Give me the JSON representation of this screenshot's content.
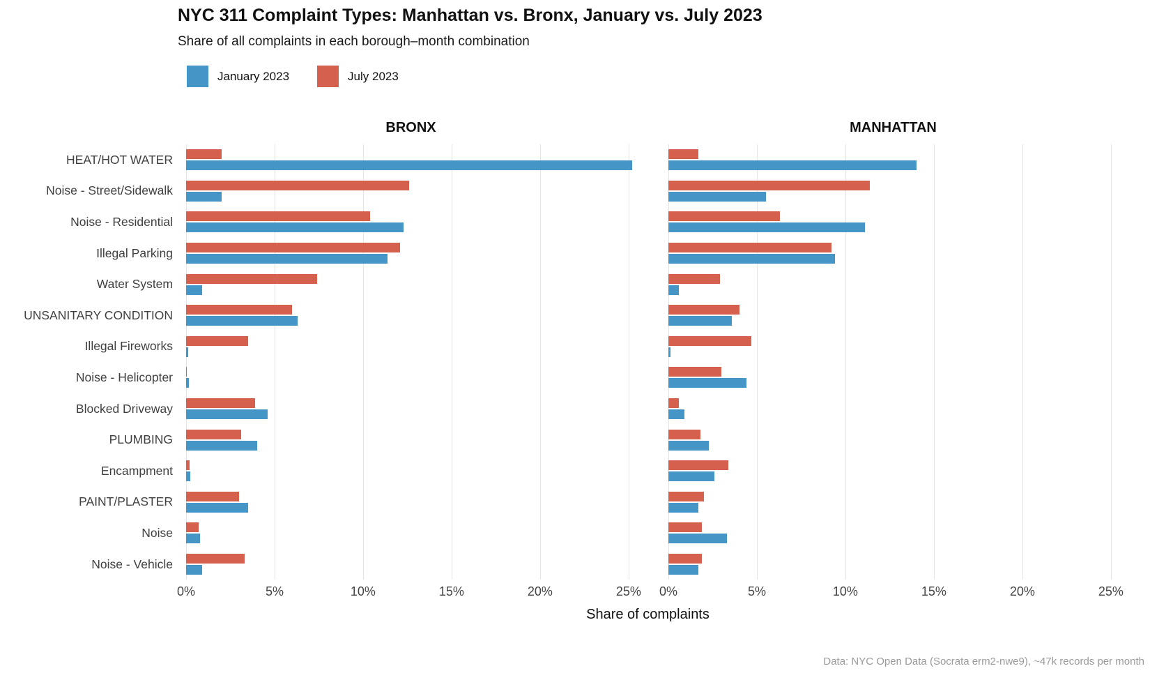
{
  "chart_data": {
    "type": "bar",
    "orientation": "horizontal",
    "title": "NYC 311 Complaint Types: Manhattan vs. Bronx, January vs. July 2023",
    "subtitle": "Share of all complaints in each borough–month combination",
    "xlabel": "Share of complaints",
    "caption": "Data: NYC Open Data (Socrata erm2-nwe9), ~47k records per month",
    "grid": "major-vertical-only",
    "legend_position": "top-left",
    "colors": {
      "january": "#4695C7",
      "july": "#D5604D",
      "gridline": "#e4e4e4"
    },
    "legend": [
      {
        "label": "January 2023",
        "color": "#4695C7"
      },
      {
        "label": "July 2023",
        "color": "#D5604D"
      }
    ],
    "categories": [
      "HEAT/HOT WATER",
      "Noise - Street/Sidewalk",
      "Noise - Residential",
      "Illegal Parking",
      "Water System",
      "UNSANITARY CONDITION",
      "Illegal Fireworks",
      "Noise - Helicopter",
      "Blocked Driveway",
      "PLUMBING",
      "Encampment",
      "PAINT/PLASTER",
      "Noise",
      "Noise - Vehicle"
    ],
    "x_ticks": {
      "values": [
        0,
        5,
        10,
        15,
        20,
        25
      ],
      "labels": [
        "0%",
        "5%",
        "10%",
        "15%",
        "20%",
        "25%"
      ]
    },
    "xlim": [
      0,
      25.4
    ],
    "facets": [
      {
        "name": "BRONX",
        "series": [
          {
            "name": "July 2023",
            "values": [
              2.0,
              12.6,
              10.4,
              12.1,
              7.4,
              6.0,
              3.5,
              0.05,
              3.9,
              3.1,
              0.2,
              3.0,
              0.7,
              3.3
            ]
          },
          {
            "name": "January 2023",
            "values": [
              25.2,
              2.0,
              12.3,
              11.4,
              0.9,
              6.3,
              0.1,
              0.15,
              4.6,
              4.0,
              0.25,
              3.5,
              0.8,
              0.9
            ]
          }
        ]
      },
      {
        "name": "MANHATTAN",
        "series": [
          {
            "name": "July 2023",
            "values": [
              1.7,
              11.4,
              6.3,
              9.2,
              2.9,
              4.0,
              4.7,
              3.0,
              0.6,
              1.8,
              3.4,
              2.0,
              1.9,
              1.9
            ]
          },
          {
            "name": "January 2023",
            "values": [
              14.0,
              5.5,
              11.1,
              9.4,
              0.6,
              3.6,
              0.1,
              4.4,
              0.9,
              2.3,
              2.6,
              1.7,
              3.3,
              1.7
            ]
          }
        ]
      }
    ]
  }
}
